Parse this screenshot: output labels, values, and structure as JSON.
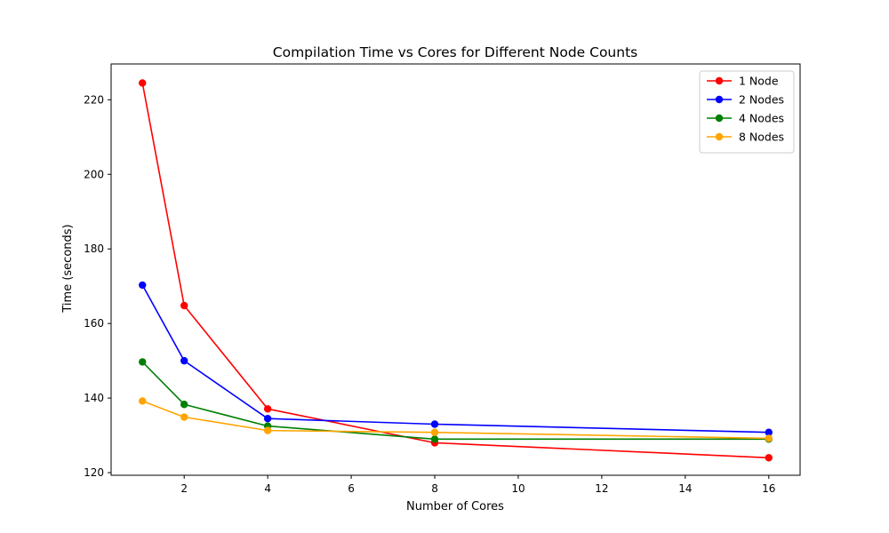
{
  "chart_data": {
    "type": "line",
    "title": "Compilation Time vs Cores for Different Node Counts",
    "xlabel": "Number of Cores",
    "ylabel": "Time (seconds)",
    "x": [
      1,
      2,
      4,
      8,
      16
    ],
    "xlim": [
      0.25,
      16.75
    ],
    "ylim": [
      119.3,
      229.6
    ],
    "xticks": [
      2,
      4,
      6,
      8,
      10,
      12,
      14,
      16
    ],
    "yticks": [
      120,
      140,
      160,
      180,
      200,
      220
    ],
    "grid": false,
    "legend_position": "top-right",
    "series": [
      {
        "name": "1 Node",
        "color": "#ff0000",
        "values": [
          224.5,
          164.8,
          137.1,
          128.0,
          124.0
        ]
      },
      {
        "name": "2 Nodes",
        "color": "#0000ff",
        "values": [
          170.3,
          150.0,
          134.5,
          133.0,
          130.8
        ]
      },
      {
        "name": "4 Nodes",
        "color": "#008000",
        "values": [
          149.7,
          138.3,
          132.5,
          129.0,
          129.0
        ]
      },
      {
        "name": "8 Nodes",
        "color": "#ffa500",
        "values": [
          139.2,
          134.9,
          131.3,
          130.8,
          129.2
        ]
      }
    ]
  }
}
